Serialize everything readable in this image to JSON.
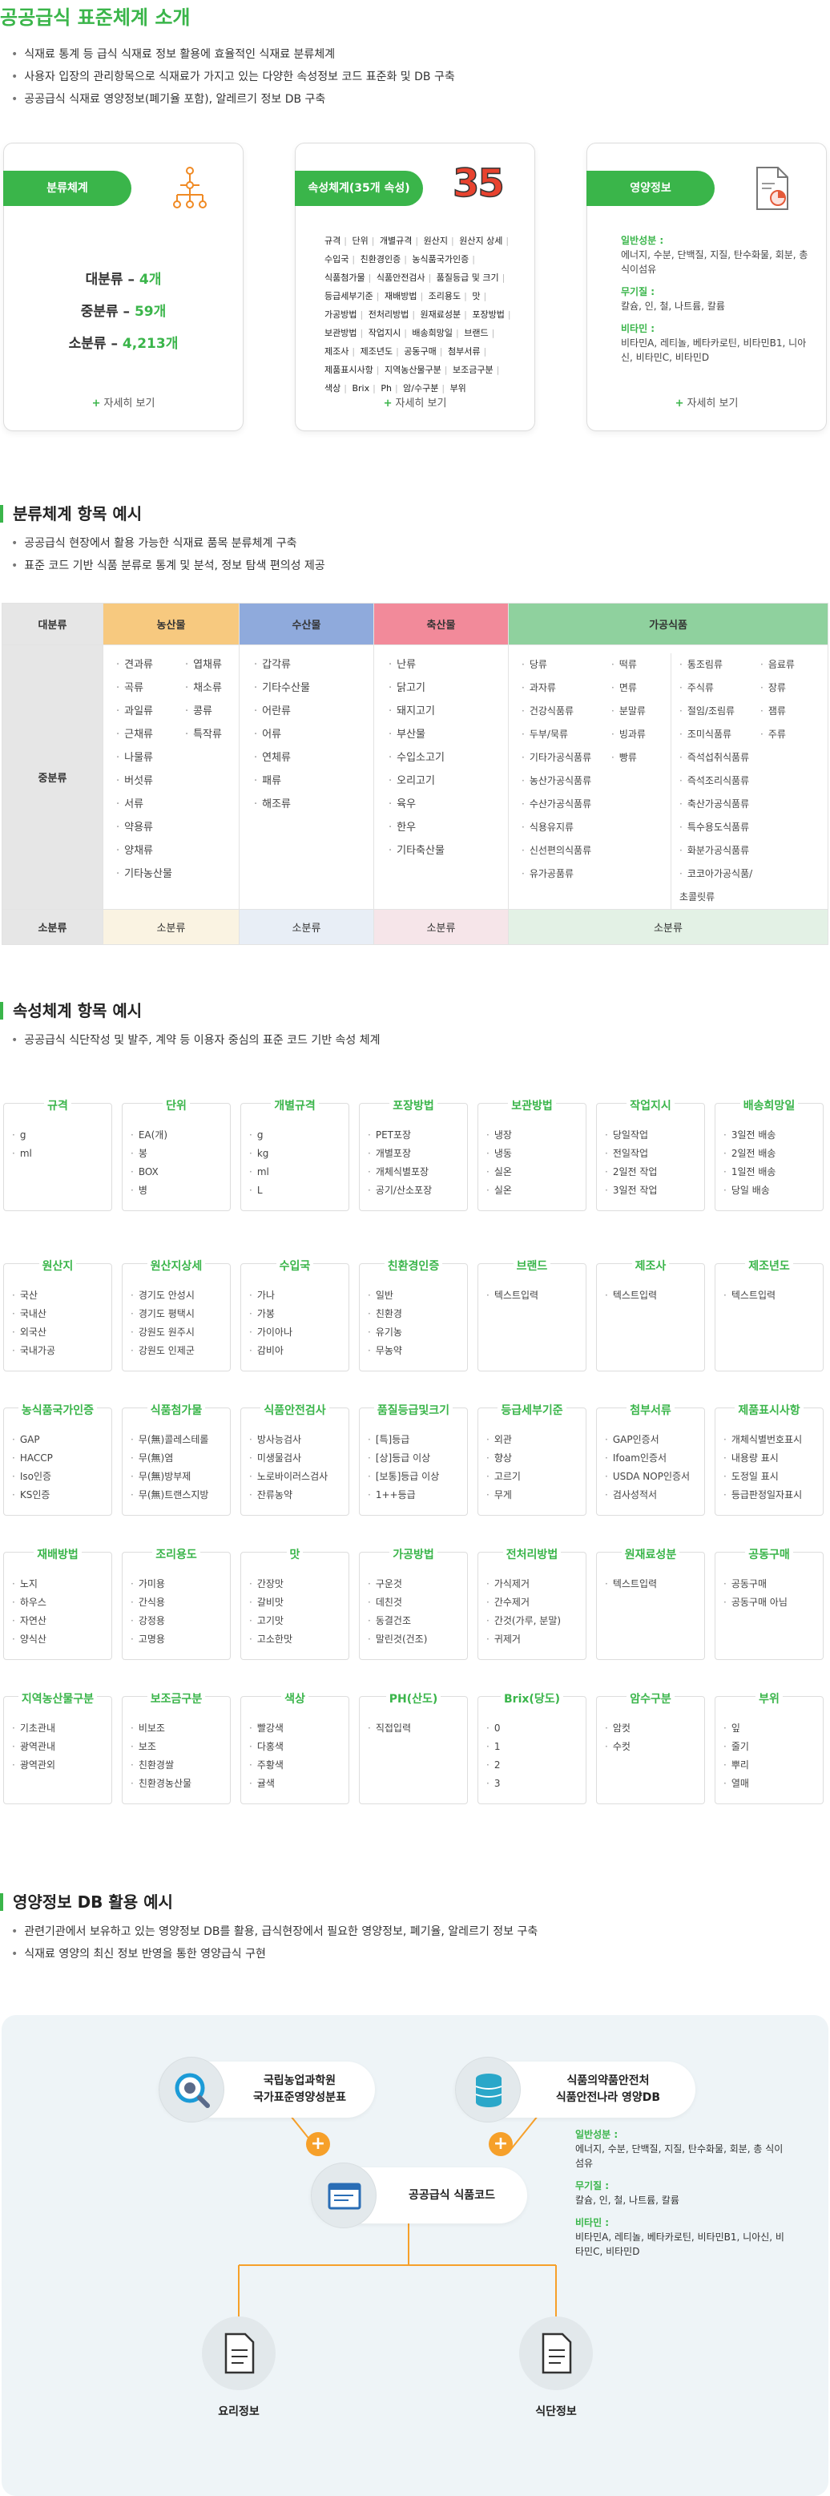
{
  "page_title": "공공급식 표준체계 소개",
  "intro_bullets": [
    "식재료 통계 등 급식 식재료 정보 활용에 효율적인 식재료 분류체계",
    "사용자 입장의 관리항목으로 식재료가 가지고 있는 다양한 속성정보 코드 표준화 및 DB 구축",
    "공공급식 식재료 영양정보(폐기율 포함), 알레르기 정보 DB 구축"
  ],
  "cards": {
    "classification": {
      "label": "분류체계",
      "lines": [
        {
          "name": "대분류",
          "value": "4개"
        },
        {
          "name": "중분류",
          "value": "59개"
        },
        {
          "name": "소분류",
          "value": "4,213개"
        }
      ],
      "more": "자세히 보기"
    },
    "attributes": {
      "label": "속성체계(35개 속성)",
      "count": "35",
      "items": [
        "규격",
        "단위",
        "개별규격",
        "원산지",
        "원산지 상세",
        "수입국",
        "친환경인증",
        "농식품국가인증",
        "식품첨가물",
        "식품안전검사",
        "품질등급 및 크기",
        "등급세부기준",
        "재배방법",
        "조리용도",
        "맛",
        "가공방법",
        "전처리방법",
        "원재료성분",
        "포장방법",
        "보관방법",
        "작업지시",
        "배송희망일",
        "브랜드",
        "제조사",
        "제조년도",
        "공동구매",
        "첨부서류",
        "제품표시사항",
        "지역농산물구분",
        "보조금구분",
        "색상",
        "Brix",
        "Ph",
        "암/수구분",
        "부위"
      ],
      "more": "자세히 보기"
    },
    "nutrition": {
      "label": "영양정보",
      "groups": [
        {
          "head": "일반성분 :",
          "body": "에너지, 수분, 단백질, 지질, 탄수화물, 회분, 총 식이섬유"
        },
        {
          "head": "무기질 :",
          "body": "칼슘, 인, 철, 나트륨, 칼륨"
        },
        {
          "head": "비타민 :",
          "body": "비타민A, 레티놀, 베타카로틴, 비타민B1, 니아신, 비타민C, 비타민D"
        }
      ],
      "more": "자세히 보기"
    }
  },
  "classification_section": {
    "title": "분류체계 항목 예시",
    "bullets": [
      "공공급식 현장에서 활용 가능한 식재료 품목 분류체계 구축",
      "표준 코드 기반 식품 분류로 통계 및 분석, 정보 탐색 편의성 제공"
    ],
    "row_labels": {
      "large": "대분류",
      "middle": "중분류",
      "small": "소분류"
    },
    "columns": [
      {
        "name": "농산물",
        "color": "#f7c97f",
        "small": "소분류",
        "lists": [
          [
            "견과류",
            "곡류",
            "과일류",
            "근채류",
            "나물류",
            "버섯류",
            "서류",
            "약용류",
            "양채류",
            "기타농산물"
          ],
          [
            "엽채류",
            "채소류",
            "콩류",
            "특작류"
          ]
        ]
      },
      {
        "name": "수산물",
        "color": "#8faadc",
        "small": "소분류",
        "lists": [
          [
            "갑각류",
            "기타수산물",
            "어란류",
            "어류",
            "연체류",
            "패류",
            "해조류"
          ]
        ]
      },
      {
        "name": "축산물",
        "color": "#f28a9a",
        "small": "소분류",
        "lists": [
          [
            "난류",
            "닭고기",
            "돼지고기",
            "부산물",
            "수입소고기",
            "오리고기",
            "육우",
            "한우",
            "기타축산물"
          ]
        ]
      },
      {
        "name": "가공식품",
        "color": "#8fd19e",
        "small": "소분류",
        "lists": [
          [
            "당류",
            "과자류",
            "건강식품류",
            "두부/묵류",
            "기타가공식품류",
            "농산가공식품류",
            "수산가공식품류",
            "식용유지류",
            "신선편의식품류",
            "유가공품류"
          ],
          [
            "떡류",
            "면류",
            "분말류",
            "빙과류",
            "빵류"
          ],
          [
            "통조림류",
            "주식류",
            "절임/조림류",
            "조미식품류",
            "즉석섭취식품류",
            "즉석조리식품류",
            "축산가공식품류",
            "특수용도식품류",
            "화분가공식품류",
            "코코아가공식품/초콜릿류"
          ],
          [
            "음료류",
            "장류",
            "잼류",
            "주류"
          ]
        ]
      }
    ]
  },
  "attribute_section": {
    "title": "속성체계 항목 예시",
    "bullets": [
      "공공급식 식단작성 및 발주, 계약 등 이용자 중심의 표준 코드 기반 속성 체계"
    ],
    "rows": [
      [
        {
          "title": "규격",
          "items": [
            "g",
            "ml"
          ]
        },
        {
          "title": "단위",
          "items": [
            "EA(개)",
            "봉",
            "BOX",
            "병"
          ]
        },
        {
          "title": "개별규격",
          "items": [
            "g",
            "kg",
            "ml",
            "L"
          ]
        },
        {
          "title": "포장방법",
          "items": [
            "PET포장",
            "개별포장",
            "개체식별포장",
            "공기/산소포장"
          ]
        },
        {
          "title": "보관방법",
          "items": [
            "냉장",
            "냉동",
            "실온",
            "실온"
          ]
        },
        {
          "title": "작업지시",
          "items": [
            "당일작업",
            "전일작업",
            "2일전 작업",
            "3일전 작업"
          ]
        },
        {
          "title": "배송희망일",
          "items": [
            "3일전 배송",
            "2일전 배송",
            "1일전 배송",
            "당일 배송"
          ]
        }
      ],
      [
        {
          "title": "원산지",
          "items": [
            "국산",
            "국내산",
            "외국산",
            "국내가공"
          ]
        },
        {
          "title": "원산지상세",
          "items": [
            "경기도 안성시",
            "경기도 평택시",
            "강원도 원주시",
            "강원도 인제군"
          ]
        },
        {
          "title": "수입국",
          "items": [
            "가나",
            "가봉",
            "가이아나",
            "감비아"
          ]
        },
        {
          "title": "친환경인증",
          "items": [
            "일반",
            "친환경",
            "유기농",
            "무농약"
          ]
        },
        {
          "title": "브랜드",
          "items": [
            "텍스트입력"
          ]
        },
        {
          "title": "제조사",
          "items": [
            "텍스트입력"
          ]
        },
        {
          "title": "제조년도",
          "items": [
            "텍스트입력"
          ]
        }
      ],
      [
        {
          "title": "농식품국가인증",
          "items": [
            "GAP",
            "HACCP",
            "Iso인증",
            "KS인증"
          ]
        },
        {
          "title": "식품첨가물",
          "items": [
            "무(無)콜레스테롤",
            "무(無)염",
            "무(無)방부제",
            "무(無)트랜스지방"
          ]
        },
        {
          "title": "식품안전검사",
          "items": [
            "방사능검사",
            "미생물검사",
            "노로바이러스검사",
            "잔류농약"
          ]
        },
        {
          "title": "품질등급및크기",
          "items": [
            "[특]등급",
            "[상]등급 이상",
            "[보통]등급 이상",
            "1++등급"
          ]
        },
        {
          "title": "등급세부기준",
          "items": [
            "외관",
            "향상",
            "고르기",
            "무게"
          ]
        },
        {
          "title": "첨부서류",
          "items": [
            "GAP인증서",
            "Ifoam인증서",
            "USDA NOP인증서",
            "검사성적서"
          ]
        },
        {
          "title": "제품표시사항",
          "items": [
            "개체식별번호표시",
            "내용량 표시",
            "도정일 표시",
            "등급판정일자표시"
          ]
        }
      ],
      [
        {
          "title": "재배방법",
          "items": [
            "노지",
            "하우스",
            "자연산",
            "양식산"
          ]
        },
        {
          "title": "조리용도",
          "items": [
            "가미용",
            "간식용",
            "강정용",
            "고명용"
          ]
        },
        {
          "title": "맛",
          "items": [
            "간장맛",
            "갈비맛",
            "고기맛",
            "고소한맛"
          ]
        },
        {
          "title": "가공방법",
          "items": [
            "구운것",
            "데친것",
            "동결건조",
            "말린것(건조)"
          ]
        },
        {
          "title": "전처리방법",
          "items": [
            "가식제거",
            "간수제거",
            "간것(가루, 분말)",
            "귀제거"
          ]
        },
        {
          "title": "원재료성분",
          "items": [
            "텍스트입력"
          ]
        },
        {
          "title": "공동구매",
          "items": [
            "공동구매",
            "공동구매 아님"
          ]
        }
      ],
      [
        {
          "title": "지역농산물구분",
          "items": [
            "기초관내",
            "광역관내",
            "광역관외"
          ]
        },
        {
          "title": "보조금구분",
          "items": [
            "비보조",
            "보조",
            "친환경쌀",
            "친환경농산물"
          ]
        },
        {
          "title": "색상",
          "items": [
            "빨강색",
            "다홍색",
            "주황색",
            "귤색"
          ]
        },
        {
          "title": "PH(산도)",
          "items": [
            "직접입력"
          ]
        },
        {
          "title": "Brix(당도)",
          "items": [
            "0",
            "1",
            "2",
            "3"
          ]
        },
        {
          "title": "암수구분",
          "items": [
            "암컷",
            "수컷"
          ]
        },
        {
          "title": "부위",
          "items": [
            "잎",
            "줄기",
            "뿌리",
            "열매"
          ]
        }
      ]
    ]
  },
  "nutrition_section": {
    "title": "영양정보 DB 활용 예시",
    "bullets": [
      "관련기관에서 보유하고 있는 영양정보 DB를 활용, 급식현장에서 필요한 영양정보, 폐기율, 알레르기 정보 구축",
      "식재료 영양의 최신 정보 반영을 통한 영양급식 구현"
    ],
    "node_left": {
      "line1": "국립농업과학원",
      "line2": "국가표준영양성분표"
    },
    "node_right": {
      "line1": "식품의약품안전처",
      "line2": "식품안전나라 영양DB"
    },
    "node_center": "공공급식 식품코드",
    "bottom_left": "요리정보",
    "bottom_right": "식단정보",
    "plus": "+",
    "groups": [
      {
        "head": "일반성분 :",
        "body": "에너지, 수분, 단백질, 지질, 탄수화물, 회분, 총 식이섬유"
      },
      {
        "head": "무기질 :",
        "body": "칼슘, 인, 철, 나트륨, 칼륨"
      },
      {
        "head": "비타민 :",
        "body": "비타민A, 레티놀, 베타카로틴, 비타민B1, 니아신, 비타민C, 비타민D"
      }
    ]
  },
  "colors": {
    "accent": "#3ab54a",
    "orange": "#f6a02a"
  }
}
